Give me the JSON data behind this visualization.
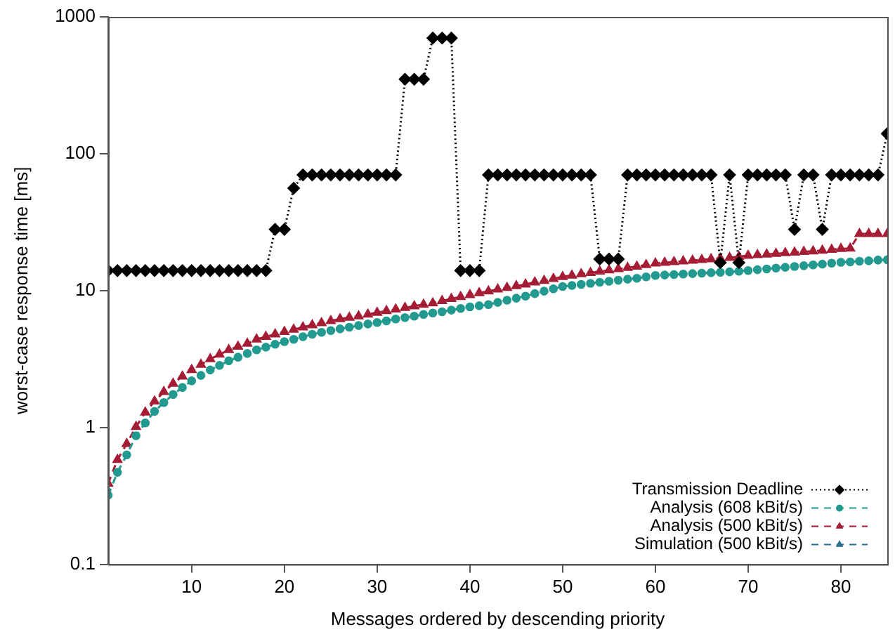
{
  "chart_data": {
    "type": "line",
    "xlabel": "Messages ordered by descending priority",
    "ylabel": "worst-case response time [ms]",
    "x": [
      1,
      2,
      3,
      4,
      5,
      6,
      7,
      8,
      9,
      10,
      11,
      12,
      13,
      14,
      15,
      16,
      17,
      18,
      19,
      20,
      21,
      22,
      23,
      24,
      25,
      26,
      27,
      28,
      29,
      30,
      31,
      32,
      33,
      34,
      35,
      36,
      37,
      38,
      39,
      40,
      41,
      42,
      43,
      44,
      45,
      46,
      47,
      48,
      49,
      50,
      51,
      52,
      53,
      54,
      55,
      56,
      57,
      58,
      59,
      60,
      61,
      62,
      63,
      64,
      65,
      66,
      67,
      68,
      69,
      70,
      71,
      72,
      73,
      74,
      75,
      76,
      77,
      78,
      79,
      80,
      81,
      82,
      83,
      84,
      85
    ],
    "xlim": [
      1,
      85
    ],
    "xticks": [
      10,
      20,
      30,
      40,
      50,
      60,
      70,
      80
    ],
    "ylim": [
      0.1,
      1000
    ],
    "yticks": [
      0.1,
      1,
      10,
      100,
      1000
    ],
    "log": "y",
    "grid": false,
    "legend": "bottom right",
    "series": [
      {
        "name": "Transmission Deadline",
        "color": "#000000",
        "marker": "diamond",
        "line_style": "dotted",
        "values": [
          14,
          14,
          14,
          14,
          14,
          14,
          14,
          14,
          14,
          14,
          14,
          14,
          14,
          14,
          14,
          14,
          14,
          14,
          28,
          28,
          56,
          70,
          70,
          70,
          70,
          70,
          70,
          70,
          70,
          70,
          70,
          70,
          350,
          350,
          350,
          700,
          700,
          700,
          14,
          14,
          14,
          70,
          70,
          70,
          70,
          70,
          70,
          70,
          70,
          70,
          70,
          70,
          70,
          17,
          17,
          17,
          70,
          70,
          70,
          70,
          70,
          70,
          70,
          70,
          70,
          70,
          16,
          70,
          16,
          70,
          70,
          70,
          70,
          70,
          28,
          70,
          70,
          28,
          70,
          70,
          70,
          70,
          70,
          70,
          140
        ]
      },
      {
        "name": "Analysis (608 kBit/s)",
        "color": "#239a90",
        "marker": "circle",
        "line_style": "dashed",
        "values": [
          0.32,
          0.47,
          0.63,
          0.87,
          1.08,
          1.31,
          1.52,
          1.74,
          1.96,
          2.19,
          2.4,
          2.63,
          2.84,
          3.07,
          3.26,
          3.47,
          3.69,
          3.86,
          4.05,
          4.24,
          4.4,
          4.6,
          4.8,
          4.95,
          5.1,
          5.25,
          5.4,
          5.55,
          5.7,
          5.85,
          6.0,
          6.2,
          6.35,
          6.5,
          6.7,
          6.85,
          7.0,
          7.2,
          7.4,
          7.6,
          7.75,
          7.9,
          8.2,
          8.5,
          8.8,
          9.1,
          9.5,
          9.9,
          10.3,
          10.7,
          10.9,
          11.1,
          11.3,
          11.5,
          11.7,
          11.9,
          12.1,
          12.3,
          12.6,
          12.9,
          13.0,
          13.1,
          13.2,
          13.3,
          13.4,
          13.5,
          13.6,
          13.7,
          13.85,
          14.0,
          14.2,
          14.4,
          14.6,
          14.8,
          15.0,
          15.2,
          15.4,
          15.6,
          15.85,
          16.1,
          16.2,
          16.4,
          16.5,
          16.7,
          16.8
        ]
      },
      {
        "name": "Analysis (500 kBit/s)",
        "color": "#a51d35",
        "marker": "triangle",
        "line_style": "dashed",
        "values": [
          0.39,
          0.58,
          0.76,
          1.01,
          1.29,
          1.55,
          1.82,
          2.09,
          2.36,
          2.63,
          2.88,
          3.16,
          3.41,
          3.69,
          3.9,
          4.1,
          4.4,
          4.6,
          4.8,
          5.0,
          5.2,
          5.4,
          5.6,
          5.8,
          6.0,
          6.2,
          6.35,
          6.5,
          6.7,
          6.9,
          7.1,
          7.3,
          7.5,
          7.7,
          7.9,
          8.1,
          8.4,
          8.7,
          9.0,
          9.3,
          9.6,
          9.9,
          10.2,
          10.5,
          10.8,
          11.1,
          11.5,
          11.8,
          12.2,
          12.6,
          12.9,
          13.2,
          13.5,
          13.8,
          14.1,
          14.4,
          14.7,
          15.0,
          15.4,
          15.8,
          16.0,
          16.2,
          16.4,
          16.6,
          16.8,
          17.0,
          17.2,
          17.4,
          17.7,
          18.0,
          18.2,
          18.4,
          18.6,
          18.8,
          19.0,
          19.2,
          19.4,
          19.6,
          19.9,
          20.2,
          20.3,
          26,
          26,
          26,
          26
        ]
      },
      {
        "name": "Simulation (500 kBit/s)",
        "color": "#2a6f97",
        "marker": "triangle",
        "line_style": "dashed",
        "values": [
          null,
          null,
          null,
          null,
          null,
          null,
          null,
          null,
          null,
          null,
          null,
          null,
          null,
          null,
          null,
          null,
          null,
          null,
          null,
          null,
          null,
          null,
          null,
          null,
          null,
          null,
          null,
          null,
          null,
          null,
          null,
          null,
          null,
          null,
          null,
          null,
          null,
          null,
          null,
          null,
          null,
          null,
          null,
          null,
          null,
          null,
          null,
          null,
          null,
          null,
          null,
          null,
          null,
          null,
          null,
          null,
          null,
          null,
          null,
          null,
          null,
          null,
          null,
          null,
          null,
          null,
          null,
          null,
          null,
          null,
          null,
          null,
          null,
          null,
          null,
          null,
          null,
          null,
          null,
          null,
          null,
          null,
          null,
          null,
          null
        ]
      }
    ]
  }
}
